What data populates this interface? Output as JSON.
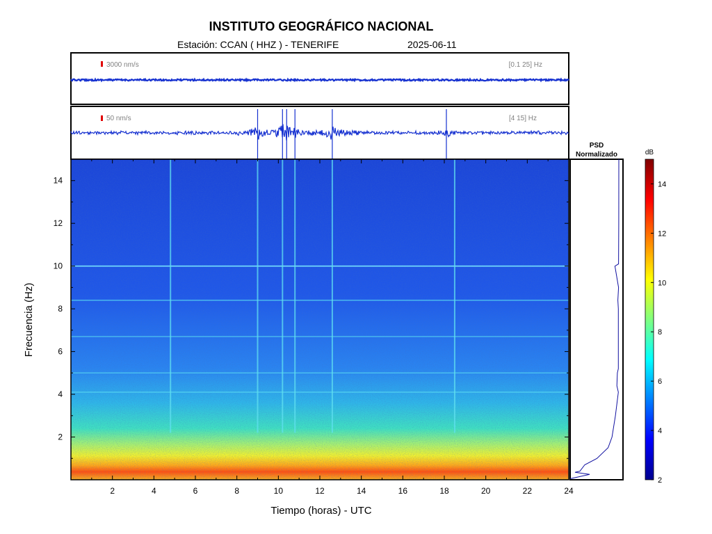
{
  "header": {
    "title": "INSTITUTO GEOGRÁFICO NACIONAL",
    "station_label": "Estación:  CCAN ( HHZ ) - TENERIFE",
    "date": "2025-06-11"
  },
  "chart_data": [
    {
      "type": "line",
      "panel": "seismogram-broadband",
      "scale_label": "3000 nm/s",
      "band_label": "[0.1 25] Hz",
      "x": [
        0,
        24
      ],
      "events": []
    },
    {
      "type": "line",
      "panel": "seismogram-filtered",
      "scale_label": "50 nm/s",
      "band_label": "[4 15] Hz",
      "xlim": [
        0,
        24
      ],
      "events": [
        {
          "x": 9.0,
          "amp": 1.0
        },
        {
          "x": 10.2,
          "amp": 0.9
        },
        {
          "x": 10.4,
          "amp": 0.5
        },
        {
          "x": 10.8,
          "amp": 0.6
        },
        {
          "x": 12.6,
          "amp": 1.0
        },
        {
          "x": 18.1,
          "amp": 0.6
        }
      ]
    },
    {
      "type": "heatmap",
      "panel": "spectrogram",
      "xlabel": "Tiempo (horas) - UTC",
      "ylabel": "Frecuencia  (Hz)",
      "xlim": [
        0,
        24
      ],
      "ylim": [
        0,
        15
      ],
      "x_ticks": [
        2,
        4,
        6,
        8,
        10,
        12,
        14,
        16,
        18,
        20,
        22,
        24
      ],
      "y_ticks": [
        2,
        4,
        6,
        8,
        10,
        12,
        14
      ],
      "horizontal_lines_hz": [
        10.0,
        8.4,
        6.7,
        5.0,
        4.1
      ],
      "vertical_lines_h": [
        4.8,
        9.0,
        10.2,
        10.8,
        12.6,
        18.5
      ]
    },
    {
      "type": "line",
      "panel": "psd",
      "title_line1": "PSD",
      "title_line2": "Normalizado",
      "ylim": [
        0,
        15
      ],
      "points": [
        [
          0.05,
          0.0
        ],
        [
          0.25,
          0.4
        ],
        [
          0.35,
          0.1
        ],
        [
          0.4,
          0.2
        ],
        [
          0.7,
          0.3
        ],
        [
          1.0,
          0.55
        ],
        [
          1.5,
          0.78
        ],
        [
          2.0,
          0.86
        ],
        [
          3.0,
          0.93
        ],
        [
          4.1,
          0.99
        ],
        [
          4.4,
          0.96
        ],
        [
          5.0,
          0.97
        ],
        [
          5.2,
          0.99
        ],
        [
          6.0,
          0.99
        ],
        [
          6.7,
          0.99
        ],
        [
          8.0,
          0.99
        ],
        [
          8.4,
          0.98
        ],
        [
          9.0,
          0.995
        ],
        [
          10.0,
          0.92
        ],
        [
          10.1,
          0.995
        ],
        [
          12.0,
          0.998
        ],
        [
          15.0,
          1.0
        ]
      ]
    },
    {
      "type": "colorbar",
      "panel": "colorbar",
      "unit_label": "dB",
      "clim": [
        2,
        15
      ],
      "ticks": [
        2,
        4,
        6,
        8,
        10,
        12,
        14
      ],
      "colors": [
        "#00008f",
        "#0000ff",
        "#0080ff",
        "#00ffff",
        "#80ff80",
        "#ffff00",
        "#ff8000",
        "#ff0000",
        "#800000"
      ]
    }
  ]
}
